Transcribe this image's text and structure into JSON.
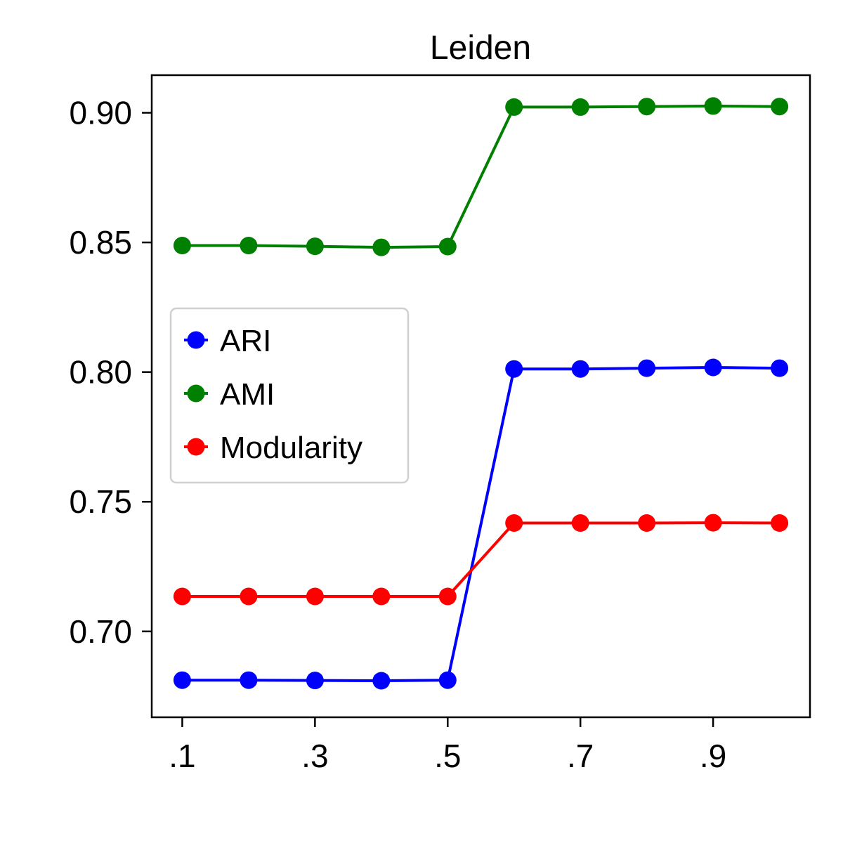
{
  "chart_data": {
    "type": "line",
    "title": "Leiden",
    "xlabel": "",
    "ylabel": "",
    "x": [
      0.1,
      0.2,
      0.3,
      0.4,
      0.5,
      0.6,
      0.7,
      0.8,
      0.9,
      1.0
    ],
    "xticks": [
      0.1,
      0.3,
      0.5,
      0.7,
      0.9
    ],
    "xtick_labels": [
      ".1",
      ".3",
      ".5",
      ".7",
      ".9"
    ],
    "xlim": [
      0.054,
      1.046
    ],
    "yticks": [
      0.7,
      0.75,
      0.8,
      0.85,
      0.9
    ],
    "ytick_labels": [
      "0.70",
      "0.75",
      "0.80",
      "0.85",
      "0.90"
    ],
    "ylim": [
      0.6669,
      0.9145
    ],
    "grid": false,
    "legend": "center-left",
    "series": [
      {
        "name": "ARI",
        "color": "#0000ff",
        "values": [
          0.6812,
          0.6812,
          0.6811,
          0.681,
          0.6812,
          0.8012,
          0.8012,
          0.8015,
          0.8018,
          0.8015
        ]
      },
      {
        "name": "AMI",
        "color": "#008000",
        "values": [
          0.8488,
          0.8488,
          0.8485,
          0.8481,
          0.8484,
          0.9022,
          0.9022,
          0.9024,
          0.9026,
          0.9024
        ]
      },
      {
        "name": "Modularity",
        "color": "#ff0000",
        "values": [
          0.7135,
          0.7135,
          0.7135,
          0.7135,
          0.7135,
          0.7418,
          0.7418,
          0.7418,
          0.7419,
          0.7418
        ]
      }
    ]
  }
}
